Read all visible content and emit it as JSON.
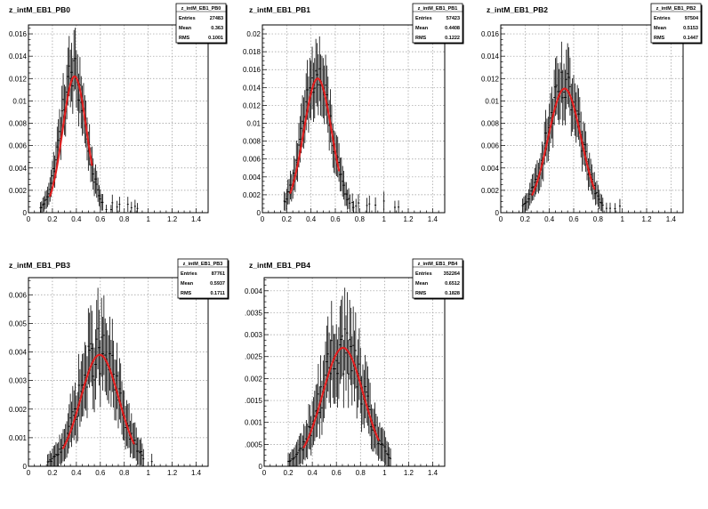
{
  "colors": {
    "frame": "#000000",
    "grid": "#9a9a9a",
    "fit": "#e02020",
    "data": "#000000",
    "background": "#ffffff"
  },
  "chart_data": [
    {
      "type": "scatter",
      "title": "z_intM_EB1_PB0",
      "xlim": [
        0,
        1.5
      ],
      "ylim": [
        0,
        0.0168
      ],
      "xticks": [
        0,
        0.2,
        0.4,
        0.6,
        0.8,
        1,
        1.2,
        1.4
      ],
      "xtick_labels": [
        "0",
        "0.2",
        "0.4",
        "0.6",
        "0.8",
        "1",
        "1.2",
        "1.4"
      ],
      "yticks": [
        0,
        0.002,
        0.004,
        0.006,
        0.008,
        0.01,
        0.012,
        0.014,
        0.016
      ],
      "ytick_labels": [
        "0",
        "0.002",
        "0.004",
        "0.006",
        "0.008",
        "0.01",
        "0.012",
        "0.014",
        "0.016"
      ],
      "stats": {
        "name": "z_intM_EB1_PB0",
        "rows": [
          [
            "Entries",
            "27483"
          ],
          [
            "Mean",
            "0.363"
          ],
          [
            "RMS",
            "0.1001"
          ]
        ]
      },
      "grid": true,
      "fit": {
        "shape": "gaussian",
        "peak": 0.0122,
        "mu": 0.385,
        "sigma": 0.1,
        "xmin": 0.18,
        "xmax": 0.53
      },
      "data_model": {
        "peak": 0.0125,
        "mu": 0.375,
        "sigma": 0.105,
        "tail": 0.18,
        "xmin": 0.1,
        "xmax": 0.95
      }
    },
    {
      "type": "scatter",
      "title": "z_intM_EB1_PB1",
      "xlim": [
        0,
        1.5
      ],
      "ylim": [
        0,
        0.021
      ],
      "xticks": [
        0,
        0.2,
        0.4,
        0.6,
        0.8,
        1,
        1.2,
        1.4
      ],
      "xtick_labels": [
        "0",
        "0.2",
        "0.4",
        "0.6",
        "0.8",
        "1",
        "1.2",
        "1.4"
      ],
      "yticks": [
        0,
        0.002,
        0.004,
        0.006,
        0.008,
        0.01,
        0.012,
        0.014,
        0.016,
        0.018,
        0.02
      ],
      "ytick_labels": [
        "0",
        "0.002",
        "0.004",
        "0.006",
        "0.008",
        "0.01",
        "0.012",
        "0.014",
        "0.016",
        "0.018",
        "0.02"
      ],
      "stats": {
        "name": "z_intM_EB1_PB1",
        "rows": [
          [
            "Entries",
            "57423"
          ],
          [
            "Mean",
            "0.4408"
          ],
          [
            "RMS",
            "0.1222"
          ]
        ]
      },
      "grid": true,
      "fit": {
        "shape": "gaussian",
        "peak": 0.015,
        "mu": 0.455,
        "sigma": 0.115,
        "xmin": 0.23,
        "xmax": 0.63
      },
      "data_model": {
        "peak": 0.015,
        "mu": 0.45,
        "sigma": 0.12,
        "tail": 0.2,
        "xmin": 0.18,
        "xmax": 1.15
      }
    },
    {
      "type": "scatter",
      "title": "z_intM_EB1_PB2",
      "xlim": [
        0,
        1.5
      ],
      "ylim": [
        0,
        0.0168
      ],
      "xticks": [
        0,
        0.2,
        0.4,
        0.6,
        0.8,
        1,
        1.2,
        1.4
      ],
      "xtick_labels": [
        "0",
        "0.2",
        "0.4",
        "0.6",
        "0.8",
        "1",
        "1.2",
        "1.4"
      ],
      "yticks": [
        0,
        0.002,
        0.004,
        0.006,
        0.008,
        0.01,
        0.012,
        0.014,
        0.016
      ],
      "ytick_labels": [
        "0",
        "0.002",
        "0.004",
        "0.006",
        "0.008",
        "0.01",
        "0.012",
        "0.014",
        "0.016"
      ],
      "stats": {
        "name": "z_intM_EB1_PB2",
        "rows": [
          [
            "Entries",
            "97504"
          ],
          [
            "Mean",
            "0.5153"
          ],
          [
            "RMS",
            "0.1447"
          ]
        ]
      },
      "grid": true,
      "fit": {
        "shape": "gaussian",
        "peak": 0.0111,
        "mu": 0.525,
        "sigma": 0.135,
        "xmin": 0.26,
        "xmax": 0.77
      },
      "data_model": {
        "peak": 0.011,
        "mu": 0.52,
        "sigma": 0.14,
        "tail": 0.2,
        "xmin": 0.18,
        "xmax": 1.0
      }
    },
    {
      "type": "scatter",
      "title": "z_intM_EB1_PB3",
      "xlim": [
        0,
        1.5
      ],
      "ylim": [
        0,
        0.0066
      ],
      "xticks": [
        0,
        0.2,
        0.4,
        0.6,
        0.8,
        1,
        1.2,
        1.4
      ],
      "xtick_labels": [
        "0",
        "0.2",
        "0.4",
        "0.6",
        "0.8",
        "1",
        "1.2",
        "1.4"
      ],
      "yticks": [
        0,
        0.001,
        0.002,
        0.003,
        0.004,
        0.005,
        0.006
      ],
      "ytick_labels": [
        "0",
        "0.001",
        "0.002",
        "0.003",
        "0.004",
        "0.005",
        "0.006"
      ],
      "stats": {
        "name": "z_intM_EB1_PB3",
        "rows": [
          [
            "Entries",
            "87761"
          ],
          [
            "Mean",
            "0.5937"
          ],
          [
            "RMS",
            "0.1711"
          ]
        ]
      },
      "grid": true,
      "fit": {
        "shape": "gaussian",
        "peak": 0.0039,
        "mu": 0.595,
        "sigma": 0.16,
        "xmin": 0.29,
        "xmax": 0.88
      },
      "data_model": {
        "peak": 0.004,
        "mu": 0.59,
        "sigma": 0.165,
        "tail": 0.28,
        "xmin": 0.16,
        "xmax": 1.05
      }
    },
    {
      "type": "scatter",
      "title": "z_intM_EB1_PB4",
      "xlim": [
        0,
        1.5
      ],
      "ylim": [
        0,
        0.0043
      ],
      "xticks": [
        0,
        0.2,
        0.4,
        0.6,
        0.8,
        1,
        1.2,
        1.4
      ],
      "xtick_labels": [
        "0",
        "0.2",
        "0.4",
        "0.6",
        "0.8",
        "1",
        "1.2",
        "1.4"
      ],
      "yticks": [
        0,
        0.0005,
        0.001,
        0.0015,
        0.002,
        0.0025,
        0.003,
        0.0035,
        0.004
      ],
      "ytick_labels": [
        "0",
        ".0005",
        "0.001",
        ".0015",
        "0.002",
        ".0025",
        "0.003",
        ".0035",
        "0.004"
      ],
      "stats": {
        "name": "z_intM_EB1_PB4",
        "rows": [
          [
            "Entries",
            "352264"
          ],
          [
            "Mean",
            "0.6512"
          ],
          [
            "RMS",
            "0.1828"
          ]
        ]
      },
      "grid": true,
      "fit": {
        "shape": "gaussian",
        "peak": 0.0027,
        "mu": 0.655,
        "sigma": 0.17,
        "xmin": 0.33,
        "xmax": 0.95
      },
      "data_model": {
        "peak": 0.0027,
        "mu": 0.65,
        "sigma": 0.175,
        "tail": 0.28,
        "xmin": 0.2,
        "xmax": 1.3
      }
    }
  ]
}
